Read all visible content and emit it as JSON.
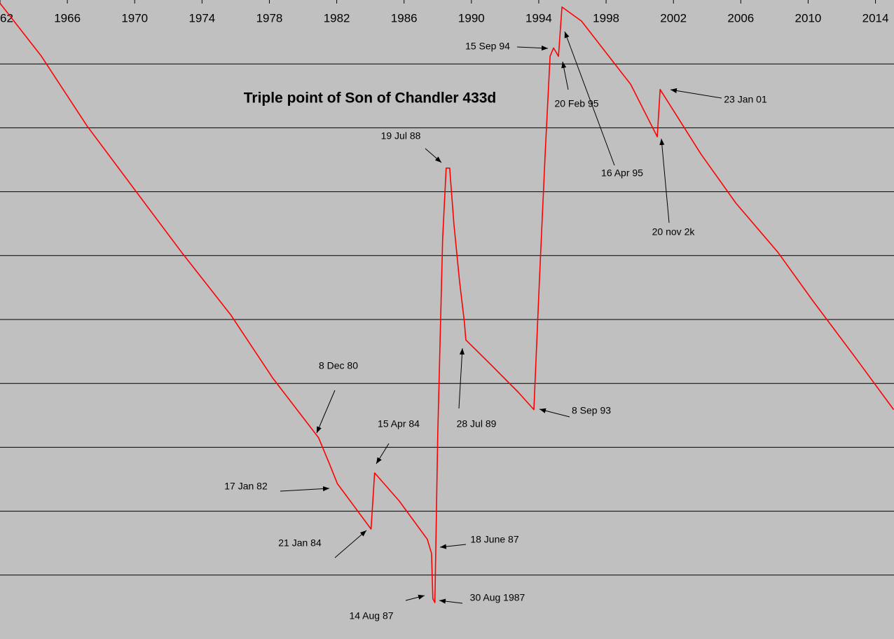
{
  "chart_data": {
    "type": "line",
    "title": "Triple point of Son of Chandler 433d",
    "x": [
      1962.0,
      1964.46,
      1967.17,
      1970.29,
      1972.79,
      1975.71,
      1978.21,
      1980.92,
      1981.54,
      1982.04,
      1984.04,
      1984.25,
      1985.71,
      1987.38,
      1987.63,
      1987.71,
      1987.83,
      1988.0,
      1988.29,
      1988.5,
      1988.71,
      1988.96,
      1989.29,
      1989.58,
      1989.67,
      1991.13,
      1992.79,
      1993.71,
      1994.04,
      1994.38,
      1994.67,
      1994.88,
      1995.17,
      1995.38,
      1996.54,
      1999.46,
      2001.04,
      2001.21,
      2003.63,
      2005.71,
      2008.21,
      2010.29,
      2012.79,
      2015.08
    ],
    "values": [
      9.95,
      9.12,
      8.03,
      6.93,
      6.05,
      5.07,
      4.08,
      3.15,
      2.76,
      2.43,
      1.72,
      2.6,
      2.16,
      1.56,
      1.34,
      0.63,
      0.57,
      3.2,
      6.27,
      7.37,
      7.37,
      6.49,
      5.61,
      4.96,
      4.68,
      4.3,
      3.86,
      3.59,
      5.61,
      7.59,
      9.12,
      9.25,
      9.12,
      9.89,
      9.67,
      8.68,
      7.86,
      8.6,
      7.59,
      6.82,
      6.05,
      5.29,
      4.41,
      3.59
    ],
    "color": "#ff0000",
    "xlim": [
      1962,
      2015.1
    ],
    "xticks": [
      {
        "value": 1962,
        "label": "62"
      },
      1966,
      1970,
      1974,
      1978,
      1982,
      1986,
      1990,
      1994,
      1998,
      2002,
      2006,
      2010,
      2014
    ],
    "ylim": [
      0,
      10
    ],
    "yticks": [
      1,
      2,
      3,
      4,
      5,
      6,
      7,
      8,
      9
    ],
    "grid": true,
    "annotations": [
      "15 Sep 94",
      "20 Feb 95",
      "16 Apr 95",
      "23 Jan 01",
      "20 nov 2k",
      "19 Jul 88",
      "8 Dec 80",
      "15 Apr 84",
      "28 Jul 89",
      "8 Sep 93",
      "17 Jan 82",
      "21 Jan 84",
      "18 June 87",
      "14 Aug 87",
      "30 Aug 1987"
    ]
  }
}
